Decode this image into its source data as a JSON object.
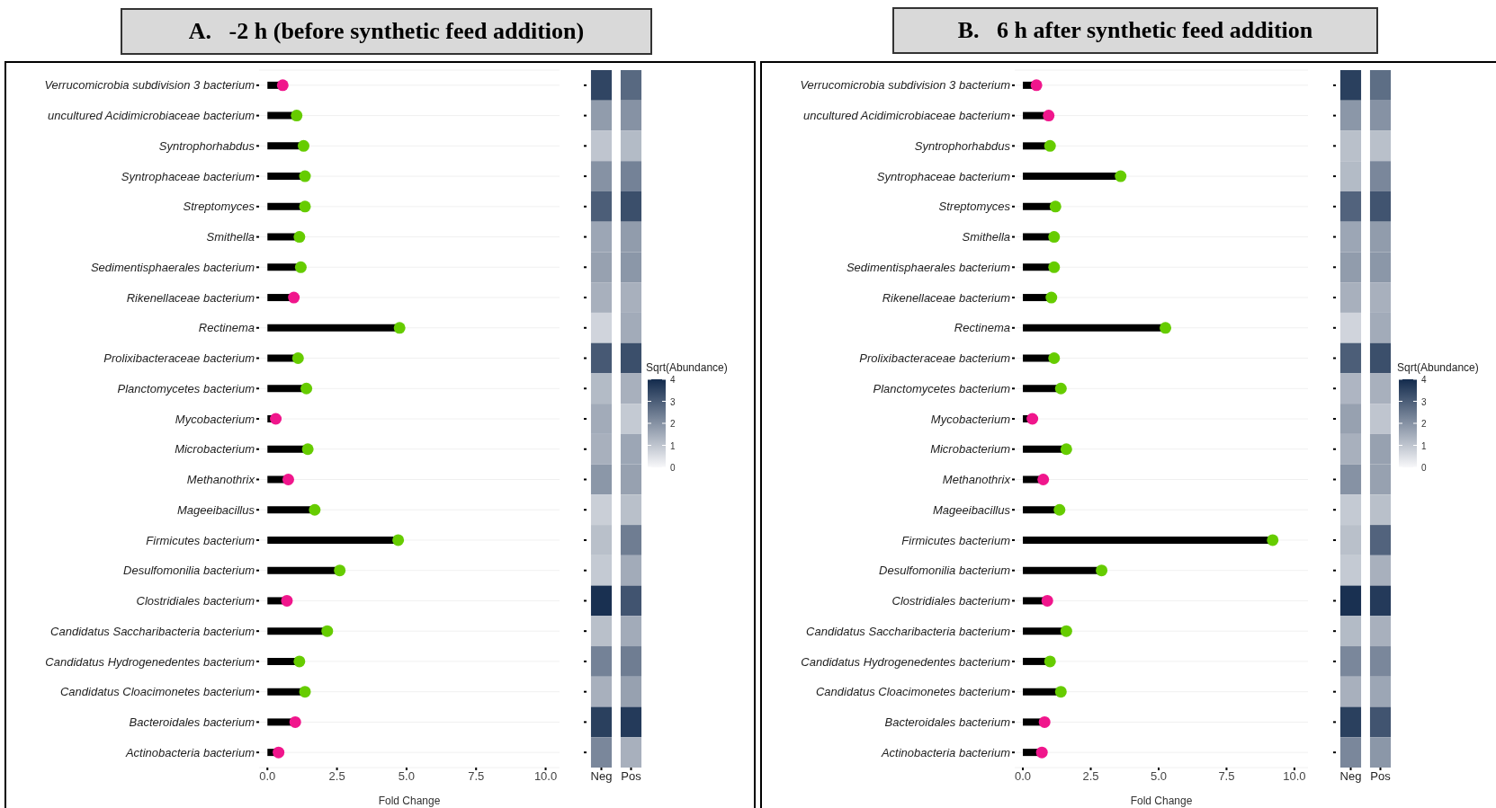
{
  "chart_data": [
    {
      "type": "lollipop",
      "title": "A.   -2 h (before synthetic feed addition)",
      "orientation": "horizontal",
      "xlabel": "Fold Change",
      "categories": [
        "Verrucomicrobia subdivision 3 bacterium",
        "uncultured Acidimicrobiaceae bacterium",
        "Syntrophorhabdus",
        "Syntrophaceae bacterium",
        "Streptomyces",
        "Smithella",
        "Sedimentisphaerales bacterium",
        "Rikenellaceae bacterium",
        "Rectinema",
        "Prolixibacteraceae bacterium",
        "Planctomycetes bacterium",
        "Mycobacterium",
        "Microbacterium",
        "Methanothrix",
        "Mageeibacillus",
        "Firmicutes bacterium",
        "Desulfomonilia bacterium",
        "Clostridiales bacterium",
        "Candidatus Saccharibacteria bacterium",
        "Candidatus Hydrogenedentes bacterium",
        "Candidatus Cloacimonetes bacterium",
        "Bacteroidales bacterium",
        "Actinobacteria bacterium"
      ],
      "values": [
        0.55,
        1.05,
        1.3,
        1.35,
        1.35,
        1.15,
        1.2,
        0.95,
        4.75,
        1.1,
        1.4,
        0.3,
        1.45,
        0.75,
        1.7,
        4.7,
        2.6,
        0.7,
        2.15,
        1.15,
        1.35,
        1.0,
        0.4
      ],
      "colors": [
        "#f0168c",
        "#66cc00",
        "#66cc00",
        "#66cc00",
        "#66cc00",
        "#66cc00",
        "#66cc00",
        "#f0168c",
        "#66cc00",
        "#66cc00",
        "#66cc00",
        "#f0168c",
        "#66cc00",
        "#f0168c",
        "#66cc00",
        "#66cc00",
        "#66cc00",
        "#f0168c",
        "#66cc00",
        "#66cc00",
        "#66cc00",
        "#f0168c",
        "#f0168c"
      ],
      "xlim": [
        -0.3,
        10.5
      ],
      "xticks": [
        {
          "value": 0,
          "label": "0.0"
        },
        {
          "value": 2.5,
          "label": "2.5"
        },
        {
          "value": 5,
          "label": "5.0"
        },
        {
          "value": 7.5,
          "label": "7.5"
        },
        {
          "value": 10,
          "label": "10.0"
        }
      ],
      "grid": "y"
    },
    {
      "type": "heatmap",
      "categories": [
        "Neg",
        "Pos"
      ],
      "clabel": "Sqrt(Abundance)",
      "clim": [
        0,
        4
      ],
      "cticks": [
        0,
        1,
        2,
        3,
        4
      ],
      "y_categories": [
        null,
        null,
        null,
        null,
        null,
        null,
        null,
        null,
        null,
        null,
        null,
        null,
        null,
        null,
        null,
        null,
        null,
        null,
        null,
        null,
        null,
        null,
        null
      ],
      "cells": [
        [
          3.5,
          2.8
        ],
        [
          1.8,
          2.0
        ],
        [
          1.0,
          1.2
        ],
        [
          2.0,
          2.3
        ],
        [
          3.0,
          3.3
        ],
        [
          1.6,
          1.8
        ],
        [
          1.7,
          1.9
        ],
        [
          1.4,
          1.4
        ],
        [
          0.7,
          1.5
        ],
        [
          3.1,
          3.3
        ],
        [
          1.2,
          1.4
        ],
        [
          1.5,
          0.9
        ],
        [
          1.4,
          1.6
        ],
        [
          1.9,
          1.7
        ],
        [
          0.8,
          1.1
        ],
        [
          1.1,
          2.4
        ],
        [
          0.9,
          1.5
        ],
        [
          3.9,
          3.2
        ],
        [
          1.1,
          1.5
        ],
        [
          2.3,
          2.4
        ],
        [
          1.4,
          1.7
        ],
        [
          3.6,
          3.7
        ],
        [
          2.2,
          1.4
        ]
      ]
    },
    {
      "type": "lollipop",
      "title": "B.   6 h after synthetic feed addition",
      "orientation": "horizontal",
      "xlabel": "Fold Change",
      "categories": [
        "Verrucomicrobia subdivision 3 bacterium",
        "uncultured Acidimicrobiaceae bacterium",
        "Syntrophorhabdus",
        "Syntrophaceae bacterium",
        "Streptomyces",
        "Smithella",
        "Sedimentisphaerales bacterium",
        "Rikenellaceae bacterium",
        "Rectinema",
        "Prolixibacteraceae bacterium",
        "Planctomycetes bacterium",
        "Mycobacterium",
        "Microbacterium",
        "Methanothrix",
        "Mageeibacillus",
        "Firmicutes bacterium",
        "Desulfomonilia bacterium",
        "Clostridiales bacterium",
        "Candidatus Saccharibacteria bacterium",
        "Candidatus Hydrogenedentes bacterium",
        "Candidatus Cloacimonetes bacterium",
        "Bacteroidales bacterium",
        "Actinobacteria bacterium"
      ],
      "values": [
        0.5,
        0.95,
        1.0,
        3.6,
        1.2,
        1.15,
        1.15,
        1.05,
        5.25,
        1.15,
        1.4,
        0.35,
        1.6,
        0.75,
        1.35,
        9.2,
        2.9,
        0.9,
        1.6,
        1.0,
        1.4,
        0.8,
        0.7
      ],
      "colors": [
        "#f0168c",
        "#f0168c",
        "#66cc00",
        "#66cc00",
        "#66cc00",
        "#66cc00",
        "#66cc00",
        "#66cc00",
        "#66cc00",
        "#66cc00",
        "#66cc00",
        "#f0168c",
        "#66cc00",
        "#f0168c",
        "#66cc00",
        "#66cc00",
        "#66cc00",
        "#f0168c",
        "#66cc00",
        "#66cc00",
        "#66cc00",
        "#f0168c",
        "#f0168c"
      ],
      "xlim": [
        -0.3,
        10.5
      ],
      "xticks": [
        {
          "value": 0,
          "label": "0.0"
        },
        {
          "value": 2.5,
          "label": "2.5"
        },
        {
          "value": 5,
          "label": "5.0"
        },
        {
          "value": 7.5,
          "label": "7.5"
        },
        {
          "value": 10,
          "label": "10.0"
        }
      ],
      "grid": "y"
    },
    {
      "type": "heatmap",
      "categories": [
        "Neg",
        "Pos"
      ],
      "clabel": "Sqrt(Abundance)",
      "clim": [
        0,
        4
      ],
      "cticks": [
        0,
        1,
        2,
        3,
        4
      ],
      "y_categories": [
        null,
        null,
        null,
        null,
        null,
        null,
        null,
        null,
        null,
        null,
        null,
        null,
        null,
        null,
        null,
        null,
        null,
        null,
        null,
        null,
        null,
        null,
        null
      ],
      "cells": [
        [
          3.6,
          2.7
        ],
        [
          1.9,
          2.0
        ],
        [
          1.1,
          1.1
        ],
        [
          1.2,
          2.2
        ],
        [
          2.9,
          3.2
        ],
        [
          1.6,
          1.8
        ],
        [
          1.8,
          1.9
        ],
        [
          1.4,
          1.4
        ],
        [
          0.7,
          1.5
        ],
        [
          3.0,
          3.3
        ],
        [
          1.3,
          1.4
        ],
        [
          1.7,
          1.0
        ],
        [
          1.4,
          1.7
        ],
        [
          2.0,
          1.7
        ],
        [
          0.9,
          1.1
        ],
        [
          1.1,
          2.9
        ],
        [
          0.9,
          1.4
        ],
        [
          3.9,
          3.7
        ],
        [
          1.2,
          1.4
        ],
        [
          2.2,
          2.2
        ],
        [
          1.4,
          1.6
        ],
        [
          3.6,
          3.2
        ],
        [
          2.2,
          1.9
        ]
      ]
    }
  ]
}
